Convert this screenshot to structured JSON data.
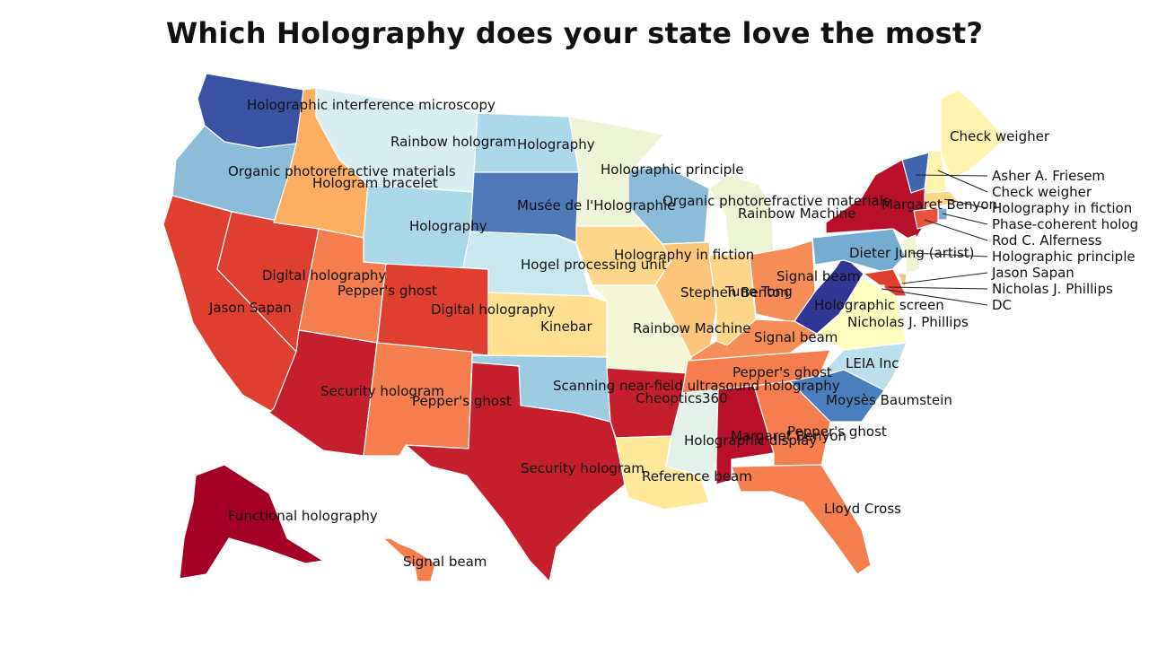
{
  "title": "Which Holography does your state love the most?",
  "palette": {
    "dark_red": "#a50026",
    "red": "#c51e2c",
    "red_orange": "#de3f2e",
    "orange": "#f47e4d",
    "light_orange": "#fdae61",
    "pale_orange": "#fee090",
    "cream": "#ffffbf",
    "pale_green": "#eef5d6",
    "pale_blue": "#e0f3f8",
    "light_blue": "#abd9e9",
    "blue": "#74add1",
    "mid_blue": "#4575b4",
    "dark_blue": "#313695"
  },
  "states": [
    {
      "id": "WA",
      "label": "Holographic interference microscopy",
      "color": "#3a52a4"
    },
    {
      "id": "OR",
      "label": "Organic photorefractive materials",
      "color": "#8bbdd9"
    },
    {
      "id": "CA",
      "label": "Jason Sapan",
      "color": "#de3f2e"
    },
    {
      "id": "NV",
      "label": "Digital holography",
      "color": "#de3f2e"
    },
    {
      "id": "ID",
      "label": "Hologram bracelet",
      "color": "#fdae61"
    },
    {
      "id": "MT",
      "label": "Rainbow hologram",
      "color": "#d9eef3"
    },
    {
      "id": "WY",
      "label": "Holography",
      "color": "#abd9e9"
    },
    {
      "id": "UT",
      "label": "Pepper's ghost",
      "color": "#f47e4d"
    },
    {
      "id": "CO",
      "label": "Digital holography",
      "color": "#de3f2e"
    },
    {
      "id": "AZ",
      "label": "Security hologram",
      "color": "#c51e2c"
    },
    {
      "id": "NM",
      "label": "Pepper's ghost",
      "color": "#f47e4d"
    },
    {
      "id": "ND",
      "label": "Holography",
      "color": "#abd9e9"
    },
    {
      "id": "SD",
      "label": "Musée de l'Holographie",
      "color": "#4d79bb"
    },
    {
      "id": "NE",
      "label": "Hogel processing unit",
      "color": "#c9e7ef"
    },
    {
      "id": "KS",
      "label": "Kinebar",
      "color": "#fee090"
    },
    {
      "id": "OK",
      "label": "Scanning near-field ultrasound holography",
      "color": "#9ccbe2"
    },
    {
      "id": "TX",
      "label": "Security hologram",
      "color": "#c51e2c"
    },
    {
      "id": "MN",
      "label": "Holographic principle",
      "color": "#eef5d6"
    },
    {
      "id": "IA",
      "label": "Holography in fiction",
      "color": "#fed68a"
    },
    {
      "id": "MO",
      "label": "Rainbow Machine",
      "color": "#f3f7d6"
    },
    {
      "id": "AR",
      "label": "Cheoptics360",
      "color": "#c51e2c"
    },
    {
      "id": "LA",
      "label": "Reference beam",
      "color": "#fee99a"
    },
    {
      "id": "WI",
      "label": "Organic photorefractive materials",
      "color": "#8bbdd9"
    },
    {
      "id": "IL",
      "label": "Stephen Benton",
      "color": "#fdc47a"
    },
    {
      "id": "MI",
      "label": "Rainbow Machine",
      "color": "#eef5d6"
    },
    {
      "id": "IN",
      "label": "Tune Tong",
      "color": "#fed68a"
    },
    {
      "id": "KY",
      "label": "Signal beam",
      "color": "#f68d56"
    },
    {
      "id": "TN",
      "label": "Pepper's ghost",
      "color": "#f47e4d"
    },
    {
      "id": "MS",
      "label": "Holographic display",
      "color": "#e2f1ea"
    },
    {
      "id": "AL",
      "label": "Margaret Benyon",
      "color": "#b8102a"
    },
    {
      "id": "GA",
      "label": "Pepper's ghost",
      "color": "#f47e4d"
    },
    {
      "id": "FL",
      "label": "Lloyd Cross",
      "color": "#f47e4d"
    },
    {
      "id": "OH",
      "label": "Signal beam",
      "color": "#f68d56"
    },
    {
      "id": "WV",
      "label": "Holographic screen",
      "color": "#313695"
    },
    {
      "id": "VA",
      "label": "Nicholas J. Phillips",
      "color": "#ffffbf"
    },
    {
      "id": "NC",
      "label": "LEIA Inc",
      "color": "#bcdfec"
    },
    {
      "id": "SC",
      "label": "Moysès Baumstein",
      "color": "#4a7fbf"
    },
    {
      "id": "PA",
      "label": "Dieter Jung (artist)",
      "color": "#74add1"
    },
    {
      "id": "NY",
      "label": "Margaret Benyon",
      "color": "#b8102a"
    },
    {
      "id": "ME",
      "label": "Check weigher",
      "color": "#fff3b0"
    },
    {
      "id": "AK",
      "label": "Functional holography",
      "color": "#a50026"
    },
    {
      "id": "HI",
      "label": "Signal beam",
      "color": "#f47e4d"
    }
  ],
  "small_states": [
    {
      "id": "VT",
      "label": "Asher A. Friesem",
      "color": "#3f66ad"
    },
    {
      "id": "NH",
      "label": "Check weigher",
      "color": "#fff3b0"
    },
    {
      "id": "MA",
      "label": "Holography in fiction",
      "color": "#fed68a"
    },
    {
      "id": "RI",
      "label": "Phase-coherent holog",
      "color": "#74add1"
    },
    {
      "id": "CT",
      "label": "Rod C. Alferness",
      "color": "#e8513a"
    },
    {
      "id": "NJ",
      "label": "Holographic principle",
      "color": "#eef5d6"
    },
    {
      "id": "DE",
      "label": "Jason Sapan",
      "color": "#f2c77a"
    },
    {
      "id": "MD",
      "label": "Nicholas J. Phillips",
      "color": "#de3f2e"
    },
    {
      "id": "DC",
      "label": "DC",
      "color": "#ffffbf"
    }
  ]
}
